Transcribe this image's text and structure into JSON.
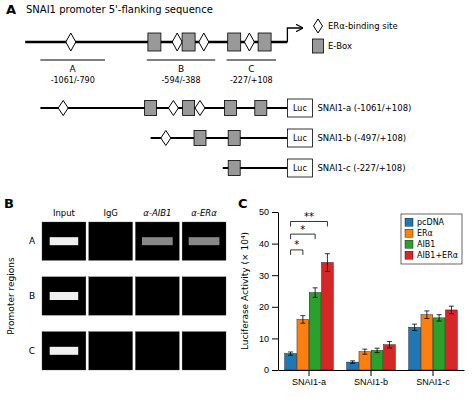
{
  "chart_data": [
    {
      "type": "diagram",
      "title": "SNAI1 promoter 5'-flanking sequence",
      "annotations": {
        "panel": "A",
        "regions": [
          {
            "label": "A",
            "coord": "-1061/-790"
          },
          {
            "label": "B",
            "coord": "-594/-388"
          },
          {
            "label": "C",
            "coord": "-227/+108"
          }
        ],
        "box": "Luc",
        "constructs": [
          "SNAI1-a (-1061/+108)",
          "SNAI1-b (-497/+108)",
          "SNAI1-c (-227/+108)"
        ]
      },
      "series": [
        {
          "name": "ERα-binding site"
        },
        {
          "name": "E-Box"
        }
      ]
    },
    {
      "type": "gel",
      "annotations": {
        "panel": "B"
      },
      "categories": [
        "Input",
        "IgG",
        "α-AIB1",
        "α-ERα"
      ],
      "rows": [
        "A",
        "B",
        "C"
      ],
      "ylabel": "Promoter regions"
    },
    {
      "type": "bar",
      "annotations": {
        "panel": "C",
        "brackets": [
          {
            "from": 0,
            "to": 1,
            "y": 38,
            "label": "*"
          },
          {
            "from": 0,
            "to": 2,
            "y": 43,
            "label": "*"
          },
          {
            "from": 0,
            "to": 3,
            "y": 47,
            "label": "**"
          }
        ]
      },
      "categories": [
        "SNAI1-a",
        "SNAI1-b",
        "SNAI1-c"
      ],
      "series": [
        {
          "name": "pcDNA",
          "values": [
            5.2,
            2.5,
            13.5
          ],
          "errors": [
            0.5,
            0.4,
            1.0
          ]
        },
        {
          "name": "ERα",
          "values": [
            16.0,
            5.8,
            17.5
          ],
          "errors": [
            1.2,
            0.8,
            1.2
          ]
        },
        {
          "name": "AIB1",
          "values": [
            24.5,
            6.2,
            16.5
          ],
          "errors": [
            1.5,
            0.7,
            1.0
          ]
        },
        {
          "name": "AIB1+ERα",
          "values": [
            34.0,
            8.0,
            19.0
          ],
          "errors": [
            2.8,
            1.0,
            1.2
          ]
        }
      ],
      "ylabel": "Luciferase Activity (× 10⁴)",
      "ylim": [
        0,
        50
      ],
      "yticks": [
        0,
        10,
        20,
        30,
        40,
        50
      ],
      "legend": "upper right"
    }
  ]
}
